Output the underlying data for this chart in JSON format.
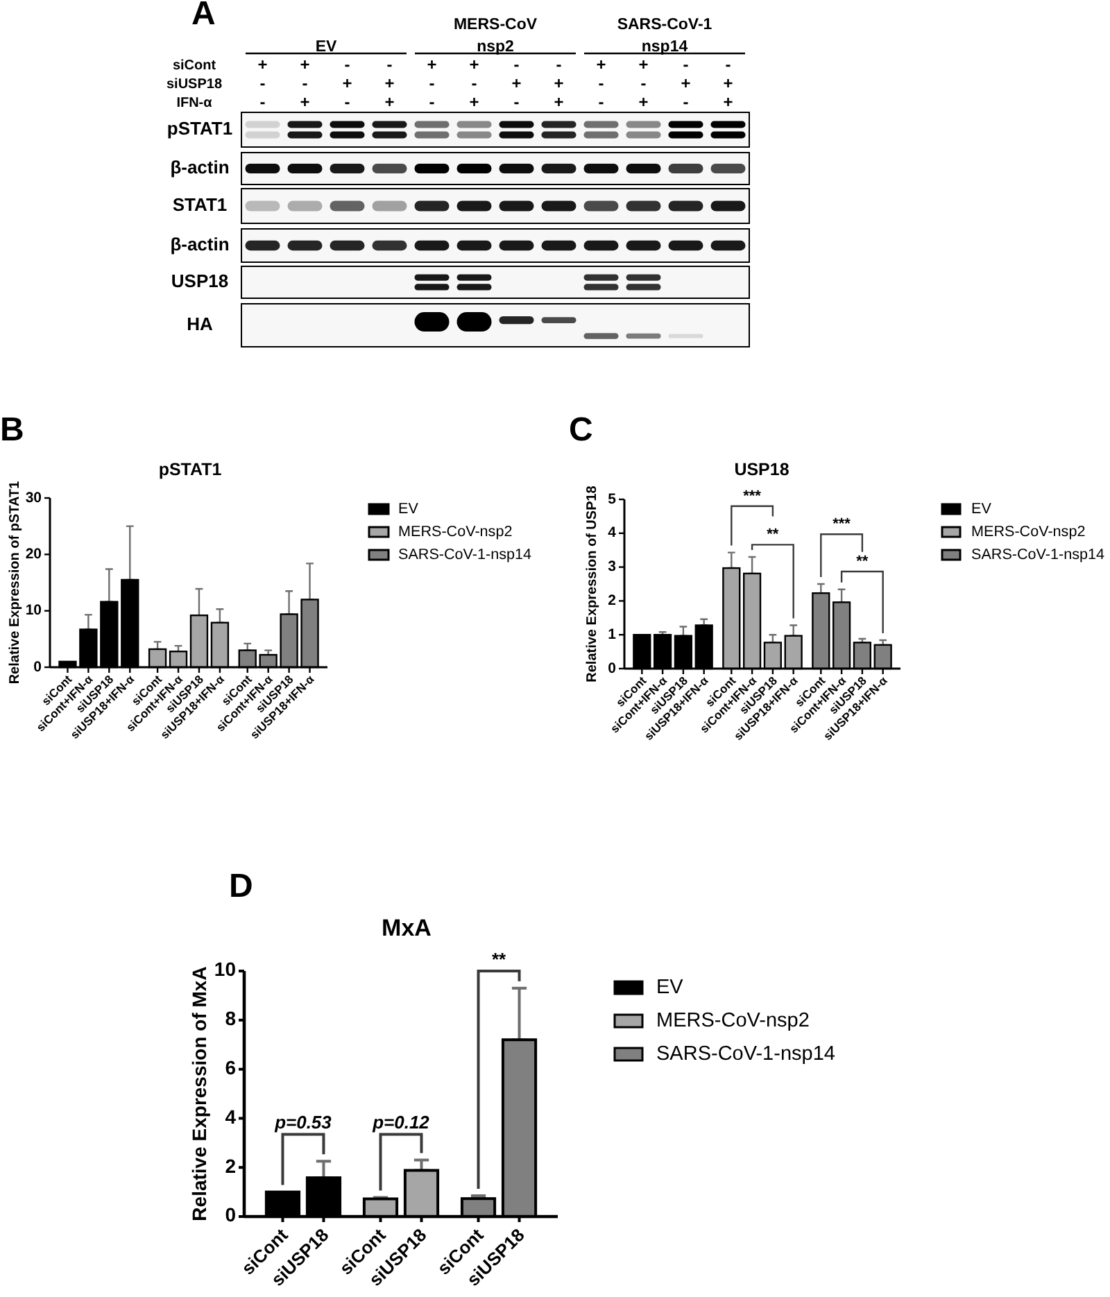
{
  "chart_data": [
    {
      "type": "other",
      "annotations": [
        "A",
        "EV",
        "MERS-CoV nsp2",
        "SARS-CoV-1 nsp14"
      ],
      "categories": [
        null,
        null,
        null,
        null,
        null,
        null,
        null,
        null,
        null,
        null,
        null,
        null
      ],
      "y_categories": [
        "siCont",
        "siUSP18",
        "IFN-α",
        "pSTAT1",
        "β-actin",
        "STAT1",
        "β-actin",
        "USP18",
        "HA"
      ],
      "cell_labels": [
        [
          "+",
          "+",
          "-",
          "-",
          "+",
          "+",
          "-",
          "-",
          "+",
          "+",
          "-",
          "-"
        ],
        [
          "-",
          "-",
          "+",
          "+",
          "-",
          "-",
          "+",
          "+",
          "-",
          "-",
          "+",
          "+"
        ],
        [
          "-",
          "+",
          "-",
          "+",
          "-",
          "+",
          "-",
          "+",
          "-",
          "+",
          "-",
          "+"
        ],
        [
          null,
          null,
          null,
          null,
          null,
          null,
          null,
          null,
          null,
          null,
          null,
          null
        ],
        [
          null,
          null,
          null,
          null,
          null,
          null,
          null,
          null,
          null,
          null,
          null,
          null
        ],
        [
          null,
          null,
          null,
          null,
          null,
          null,
          null,
          null,
          null,
          null,
          null,
          null
        ],
        [
          null,
          null,
          null,
          null,
          null,
          null,
          null,
          null,
          null,
          null,
          null,
          null
        ],
        [
          null,
          null,
          null,
          null,
          null,
          null,
          null,
          null,
          null,
          null,
          null,
          null
        ],
        [
          null,
          null,
          null,
          null,
          null,
          null,
          null,
          null,
          null,
          null,
          null,
          null
        ]
      ]
    },
    {
      "type": "bar",
      "title": "pSTAT1",
      "ylabel": "Relative Expression of pSTAT1",
      "annotations": [
        "B"
      ],
      "categories": [
        "siCont",
        "siCont+IFN-α",
        "siUSP18",
        "siUSP18+IFN-α",
        "siCont",
        "siCont+IFN-α",
        "siUSP18",
        "siUSP18+IFN-α",
        "siCont",
        "siCont+IFN-α",
        "siUSP18",
        "siUSP18+IFN-α"
      ],
      "ylim": [
        0,
        30
      ],
      "yticks": [
        0,
        10,
        20,
        30
      ],
      "legend": "right",
      "series": [
        {
          "name": "EV",
          "color": "#000000",
          "values": [
            1.0,
            6.7,
            11.6,
            15.5,
            null,
            null,
            null,
            null,
            null,
            null,
            null,
            null
          ],
          "errors": [
            null,
            [
              6.7,
              9.3
            ],
            [
              11.6,
              17.4
            ],
            [
              15.5,
              25
            ],
            null,
            null,
            null,
            null,
            null,
            null,
            null,
            null
          ]
        },
        {
          "name": "MERS-CoV-nsp2",
          "color": "#a6a6a6",
          "values": [
            null,
            null,
            null,
            null,
            3.2,
            2.8,
            9.2,
            7.9,
            null,
            null,
            null,
            null
          ],
          "errors": [
            null,
            null,
            null,
            null,
            [
              3.2,
              4.5
            ],
            [
              2.8,
              3.8
            ],
            [
              9.2,
              13.9
            ],
            [
              7.9,
              10.3
            ],
            null,
            null,
            null,
            null
          ]
        },
        {
          "name": "SARS-CoV-1-nsp14",
          "color": "#808080",
          "values": [
            null,
            null,
            null,
            null,
            null,
            null,
            null,
            null,
            3.0,
            2.2,
            9.4,
            12.0
          ],
          "errors": [
            null,
            null,
            null,
            null,
            null,
            null,
            null,
            null,
            [
              3.0,
              4.2
            ],
            [
              2.2,
              3.0
            ],
            [
              9.4,
              13.5
            ],
            [
              12.0,
              18.4
            ]
          ]
        }
      ]
    },
    {
      "type": "bar",
      "title": "USP18",
      "ylabel": "Relative Expression of USP18",
      "annotations": [
        "C",
        "***",
        "**",
        "***",
        "**"
      ],
      "categories": [
        "siCont",
        "siCont+IFN-α",
        "siUSP18",
        "siUSP18+IFN-α",
        "siCont",
        "siCont+IFN-α",
        "siUSP18",
        "siUSP18+IFN-α",
        "siCont",
        "siCont+IFN-α",
        "siUSP18",
        "siUSP18+IFN-α"
      ],
      "ylim": [
        0,
        5
      ],
      "yticks": [
        0,
        1,
        2,
        3,
        4,
        5
      ],
      "legend": "right",
      "series": [
        {
          "name": "EV",
          "color": "#000000",
          "values": [
            1.0,
            1.0,
            0.97,
            1.28,
            null,
            null,
            null,
            null,
            null,
            null,
            null,
            null
          ],
          "errors": [
            null,
            [
              1.0,
              1.08
            ],
            [
              0.97,
              1.24
            ],
            [
              1.28,
              1.46
            ],
            null,
            null,
            null,
            null,
            null,
            null,
            null,
            null
          ]
        },
        {
          "name": "MERS-CoV-nsp2",
          "color": "#a6a6a6",
          "values": [
            null,
            null,
            null,
            null,
            2.97,
            2.81,
            0.77,
            0.97,
            null,
            null,
            null,
            null
          ],
          "errors": [
            null,
            null,
            null,
            null,
            [
              2.97,
              3.43
            ],
            [
              2.81,
              3.3
            ],
            [
              0.77,
              1.0
            ],
            [
              0.97,
              1.28
            ],
            null,
            null,
            null,
            null
          ]
        },
        {
          "name": "SARS-CoV-1-nsp14",
          "color": "#808080",
          "values": [
            null,
            null,
            null,
            null,
            null,
            null,
            null,
            null,
            2.23,
            1.96,
            0.77,
            0.7
          ],
          "errors": [
            null,
            null,
            null,
            null,
            null,
            null,
            null,
            null,
            [
              2.23,
              2.5
            ],
            [
              1.96,
              2.34
            ],
            [
              0.77,
              0.88
            ],
            [
              0.7,
              0.84
            ]
          ]
        }
      ]
    },
    {
      "type": "bar",
      "title": "MxA",
      "ylabel": "Relative Expression of MxA",
      "annotations": [
        "D",
        "p=0.53",
        "p=0.12",
        "**"
      ],
      "categories": [
        "siCont",
        "siUSP18",
        "siCont",
        "siUSP18",
        "siCont",
        "siUSP18"
      ],
      "ylim": [
        0,
        10
      ],
      "yticks": [
        0,
        2,
        4,
        6,
        8,
        10
      ],
      "legend": "right",
      "series": [
        {
          "name": "EV",
          "color": "#000000",
          "values": [
            1.0,
            1.58,
            null,
            null,
            null,
            null
          ],
          "errors": [
            null,
            [
              1.58,
              2.25
            ],
            null,
            null,
            null,
            null
          ]
        },
        {
          "name": "MERS-CoV-nsp2",
          "color": "#a6a6a6",
          "values": [
            null,
            null,
            0.72,
            1.88,
            null,
            null
          ],
          "errors": [
            null,
            null,
            [
              0.72,
              0.78
            ],
            [
              1.88,
              2.3
            ],
            null,
            null
          ]
        },
        {
          "name": "SARS-CoV-1-nsp14",
          "color": "#808080",
          "values": [
            null,
            null,
            null,
            null,
            0.73,
            7.2
          ],
          "errors": [
            null,
            null,
            null,
            null,
            [
              0.73,
              0.85
            ],
            [
              7.2,
              9.3
            ]
          ]
        }
      ]
    }
  ]
}
